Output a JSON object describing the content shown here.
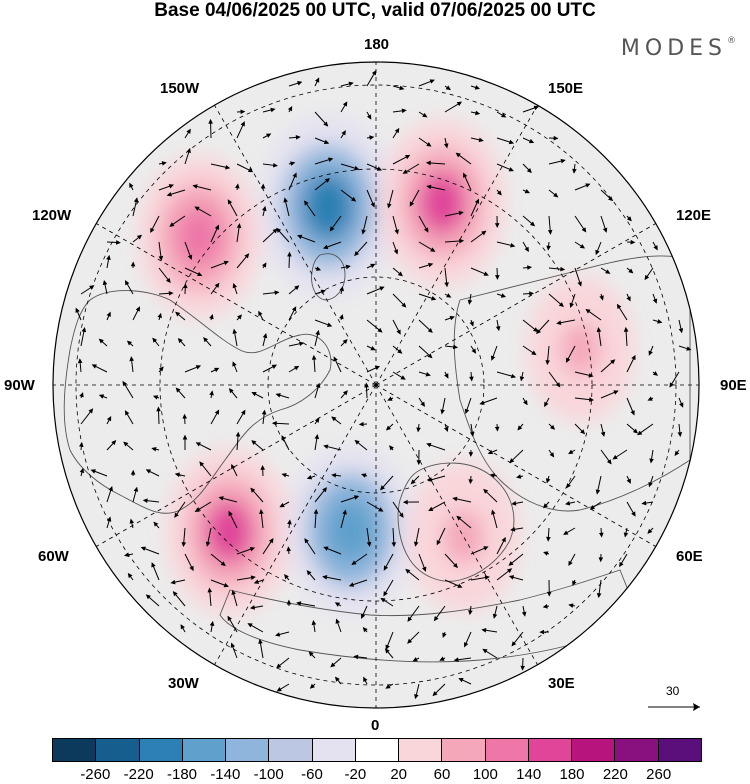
{
  "title": "Base 04/06/2025 00 UTC, valid 07/06/2025 00 UTC",
  "logo": "MODES",
  "logo_mark": "®",
  "longitude_labels": {
    "top": "180",
    "bottom": "0",
    "left": "90W",
    "right": "90E",
    "upper_left_1": "150W",
    "upper_left_2": "120W",
    "lower_left_1": "60W",
    "lower_left_2": "30W",
    "upper_right_1": "150E",
    "upper_right_2": "120E",
    "lower_right_1": "60E",
    "lower_right_2": "30E"
  },
  "reference_vector": {
    "label": "30"
  },
  "colorbar": {
    "colors": [
      "#0b3a5c",
      "#155e8e",
      "#2c80b4",
      "#5fa0cc",
      "#8fb5dc",
      "#bcc7e4",
      "#e4e2f0",
      "#ffffff",
      "#f9d6da",
      "#f4a7b9",
      "#ee77a8",
      "#e0459a",
      "#b8147e",
      "#88107f",
      "#5a0f7a"
    ],
    "ticks": [
      "-260",
      "-220",
      "-180",
      "-140",
      "-100",
      "-60",
      "-20",
      "20",
      "60",
      "100",
      "140",
      "180",
      "220",
      "260"
    ]
  },
  "anomaly_centers": [
    {
      "lon": -165,
      "lat": 50,
      "value": -220
    },
    {
      "lon": 160,
      "lat": 48,
      "value": 150
    },
    {
      "lon": -130,
      "lat": 40,
      "value": 130
    },
    {
      "lon": -45,
      "lat": 45,
      "value": 150
    },
    {
      "lon": -10,
      "lat": 58,
      "value": -170
    },
    {
      "lon": 30,
      "lat": 52,
      "value": 80
    },
    {
      "lon": 100,
      "lat": 45,
      "value": 60
    }
  ]
}
